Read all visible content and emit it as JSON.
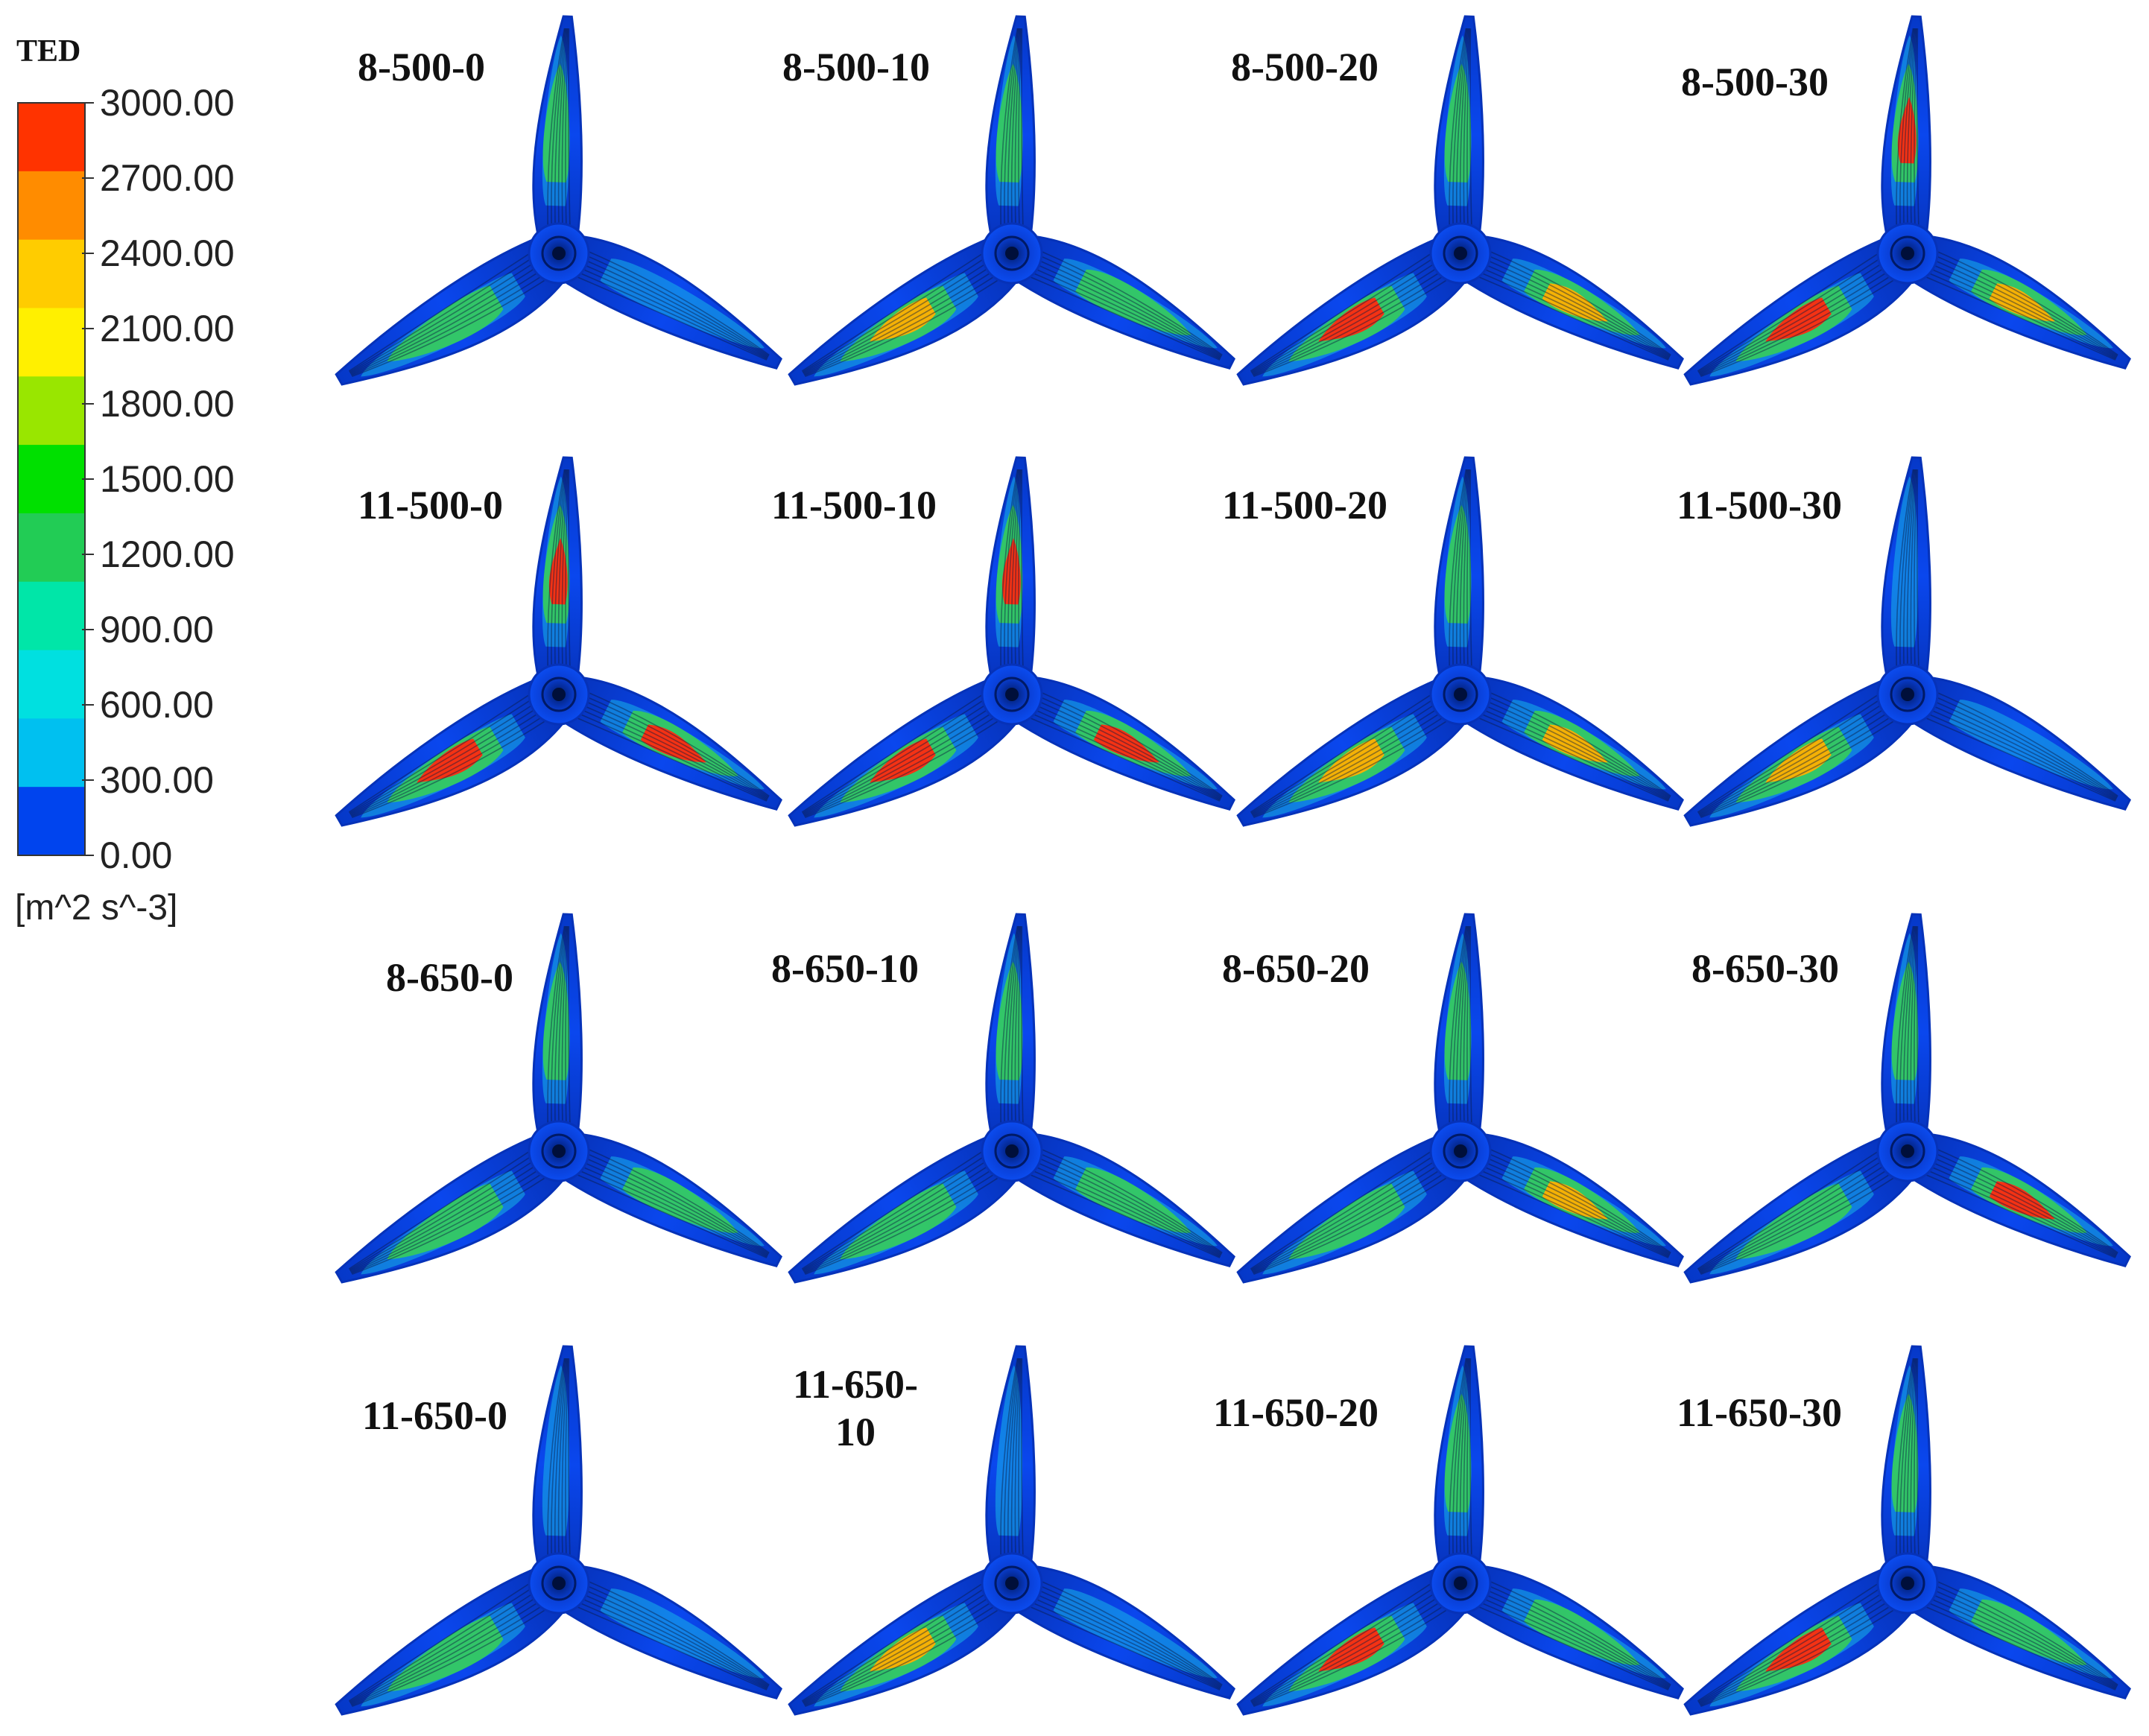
{
  "legend": {
    "title": "TED",
    "ticks": [
      "3000.00",
      "2700.00",
      "2400.00",
      "2100.00",
      "1800.00",
      "1500.00",
      "1200.00",
      "900.00",
      "600.00",
      "300.00",
      "0.00"
    ],
    "unit": "[m^2 s^-3]",
    "colors": [
      "#ff3300",
      "#ff8c00",
      "#ffcc00",
      "#fff000",
      "#99e600",
      "#00e000",
      "#22cc55",
      "#00e6a8",
      "#00e0e0",
      "#00c0f0",
      "#0044ee"
    ]
  },
  "panels": [
    {
      "label": "8-500-0"
    },
    {
      "label": "8-500-10"
    },
    {
      "label": "8-500-20"
    },
    {
      "label": "8-500-30"
    },
    {
      "label": "11-500-0"
    },
    {
      "label": "11-500-10"
    },
    {
      "label": "11-500-20"
    },
    {
      "label": "11-500-30"
    },
    {
      "label": "8-650-0"
    },
    {
      "label": "8-650-10"
    },
    {
      "label": "8-650-20"
    },
    {
      "label": "8-650-30"
    },
    {
      "label": "11-650-0"
    },
    {
      "label": "11-650-\n10"
    },
    {
      "label": "11-650-20"
    },
    {
      "label": "11-650-30"
    }
  ],
  "colors": {
    "blade_base": "#0a3fe0",
    "blade_edge": "#0632b8",
    "mid": "#18b4e8",
    "high": "#3ddc3d",
    "peak": "#ff2a10",
    "streak": "#0b1a40"
  }
}
